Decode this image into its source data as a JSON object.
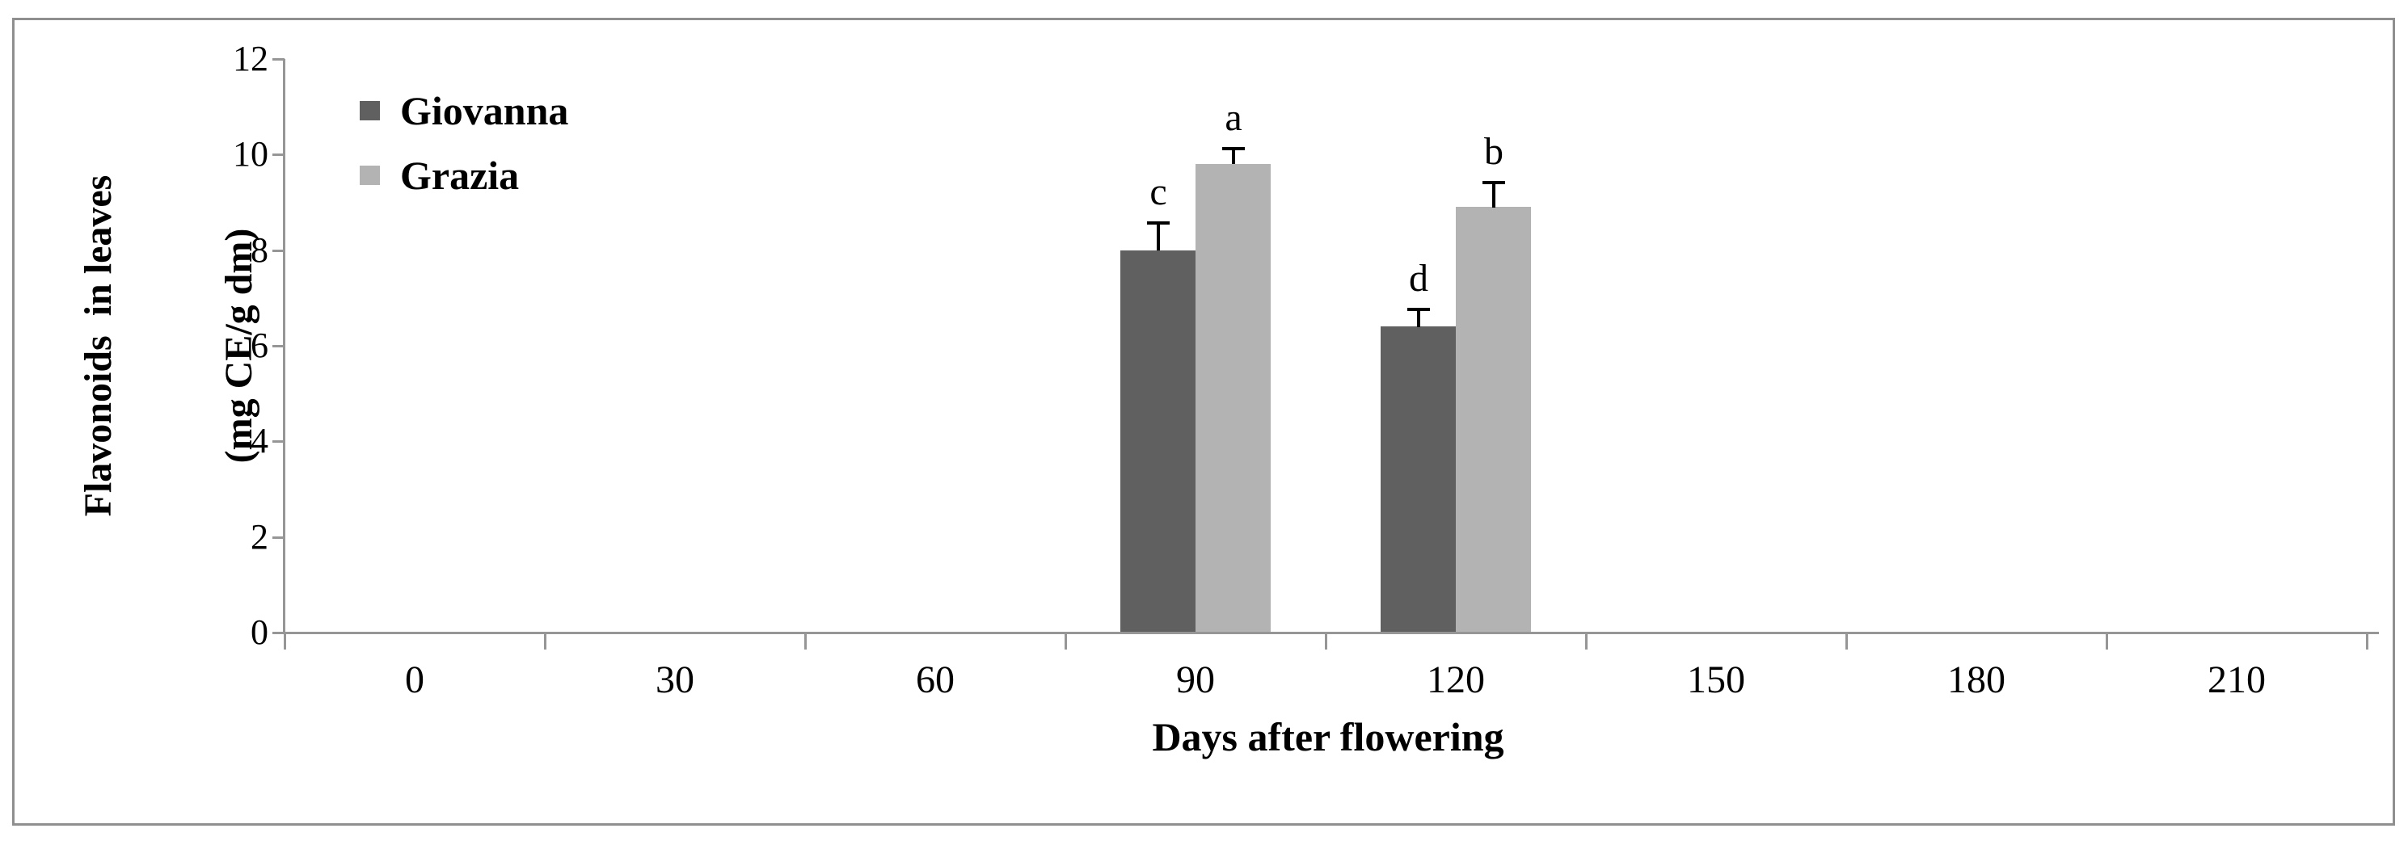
{
  "figure": {
    "background": "#ffffff",
    "border_color": "#8f8f8f"
  },
  "chart_data": {
    "type": "bar",
    "title": "",
    "xlabel": "Days after flowering",
    "ylabel": "Flavonoids  in leaves (mg CE/g dm)",
    "ylabel_line1": "Flavonoids  in leaves",
    "ylabel_line2": "(mg CE/g dm)",
    "categories": [
      "0",
      "30",
      "60",
      "90",
      "120",
      "150",
      "180",
      "210"
    ],
    "y_ticks": [
      0,
      2,
      4,
      6,
      8,
      10,
      12
    ],
    "ylim": [
      0,
      12
    ],
    "grid": false,
    "axis_color": "#969696",
    "error_bar_color": "#000000",
    "text_color": "#000000",
    "legend": {
      "position": "upper-left-inside",
      "entries": [
        "Giovanna",
        "Grazia"
      ]
    },
    "series": [
      {
        "name": "Giovanna",
        "color": "#606060",
        "points": [
          {
            "category": "90",
            "value": 8.0,
            "error": 0.6,
            "sig_letter": "c"
          },
          {
            "category": "120",
            "value": 6.4,
            "error": 0.4,
            "sig_letter": "d"
          }
        ]
      },
      {
        "name": "Grazia",
        "color": "#b3b3b3",
        "points": [
          {
            "category": "90",
            "value": 9.8,
            "error": 0.35,
            "sig_letter": "a"
          },
          {
            "category": "120",
            "value": 8.9,
            "error": 0.55,
            "sig_letter": "b"
          }
        ]
      }
    ]
  }
}
